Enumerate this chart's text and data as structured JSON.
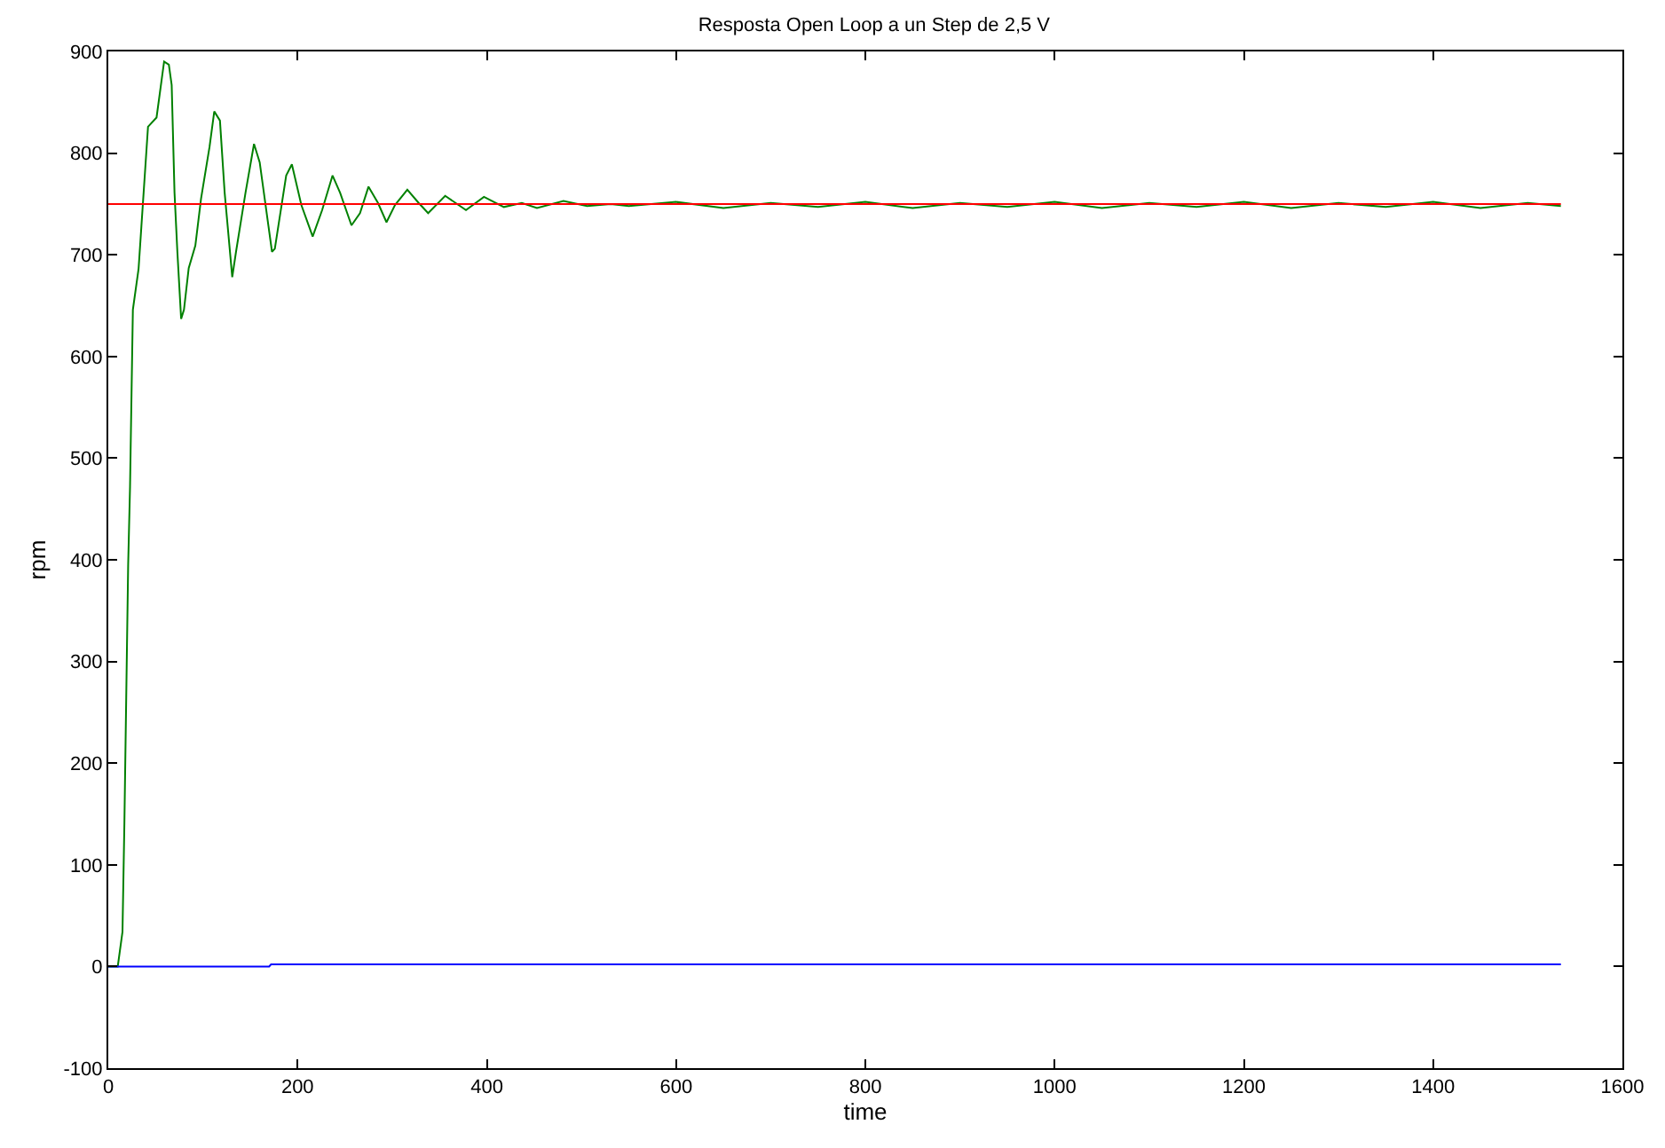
{
  "chart_data": {
    "type": "line",
    "title": "Resposta Open Loop a un Step de 2,5 V",
    "xlabel": "time",
    "ylabel": "rpm",
    "xlim": [
      0,
      1600
    ],
    "xticks": [
      0,
      200,
      400,
      600,
      800,
      1000,
      1200,
      1400,
      1600
    ],
    "ylim": [
      -100,
      900
    ],
    "yticks": [
      -100,
      0,
      100,
      200,
      300,
      400,
      500,
      600,
      700,
      800,
      900
    ],
    "marker": "none",
    "line_style": "solid",
    "series": [
      {
        "color": "#008000",
        "x": [
          0,
          10,
          15,
          17,
          21,
          23,
          26,
          32,
          42,
          51,
          59,
          64,
          67,
          70,
          73,
          77,
          80,
          85,
          92,
          98,
          107,
          112,
          118,
          123,
          131,
          135,
          145,
          154,
          160,
          173,
          176,
          188,
          194,
          204,
          216,
          226,
          237,
          245,
          257,
          266,
          275,
          285,
          294,
          303,
          316,
          328,
          338,
          356,
          378,
          397,
          418,
          437,
          453,
          481,
          506,
          531,
          550,
          600,
          650,
          700,
          750,
          800,
          850,
          900,
          950,
          1000,
          1050,
          1100,
          1150,
          1200,
          1250,
          1300,
          1350,
          1400,
          1450,
          1500,
          1535
        ],
        "values": [
          0,
          0,
          34,
          139,
          395,
          472,
          646,
          686,
          826,
          835,
          890,
          887,
          867,
          761,
          703,
          637,
          646,
          687,
          709,
          755,
          806,
          841,
          832,
          761,
          678,
          703,
          761,
          809,
          791,
          703,
          706,
          778,
          789,
          749,
          718,
          744,
          778,
          761,
          729,
          741,
          767,
          751,
          732,
          749,
          764,
          751,
          741,
          758,
          744,
          757,
          747,
          751,
          746,
          753,
          748,
          750,
          748,
          752,
          746,
          751,
          747,
          752,
          746,
          751,
          747,
          752,
          746,
          751,
          747,
          752,
          746,
          751,
          747,
          752,
          746,
          751,
          748
        ]
      },
      {
        "color": "#ff0000",
        "x": [
          0,
          1535
        ],
        "values": [
          750,
          750
        ]
      },
      {
        "color": "#0000ff",
        "x": [
          0,
          170,
          172,
          1535
        ],
        "values": [
          0,
          0,
          2,
          2
        ]
      }
    ]
  }
}
